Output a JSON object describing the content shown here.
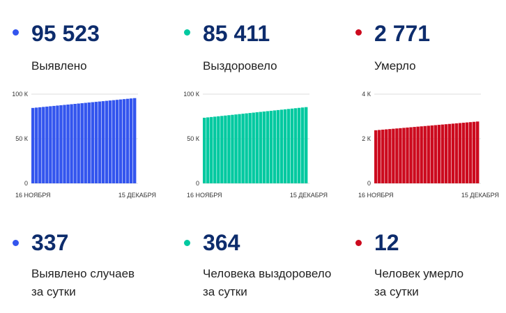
{
  "colors": {
    "confirmed": "#3355ee",
    "recovered": "#00c9a0",
    "deaths": "#cc0a1e",
    "number": "#0d2c6c",
    "grid": "#dddddd"
  },
  "totals": [
    {
      "value": "95 523",
      "label": "Выявлено"
    },
    {
      "value": "85 411",
      "label": "Выздоровело"
    },
    {
      "value": "2 771",
      "label": "Умерло"
    }
  ],
  "daily": [
    {
      "value": "337",
      "line1": "Выявлено случаев",
      "line2": "за сутки"
    },
    {
      "value": "364",
      "line1": "Человека выздоровело",
      "line2": "за сутки"
    },
    {
      "value": "12",
      "line1": "Человек умерло",
      "line2": "за сутки"
    }
  ],
  "chart_data": [
    {
      "type": "bar",
      "series_color": "confirmed",
      "x_start": "16 НОЯБРЯ",
      "x_end": "15 ДЕКАБРЯ",
      "bar_count": 30,
      "start_value": 84500,
      "end_value": 95523,
      "ylim": [
        0,
        100000
      ],
      "yticks": [
        0,
        50000,
        100000
      ],
      "ytick_labels": [
        "0",
        "50 К",
        "100 К"
      ],
      "grid": true
    },
    {
      "type": "bar",
      "series_color": "recovered",
      "x_start": "16 НОЯБРЯ",
      "x_end": "15 ДЕКАБРЯ",
      "bar_count": 30,
      "start_value": 73500,
      "end_value": 85411,
      "ylim": [
        0,
        100000
      ],
      "yticks": [
        0,
        50000,
        100000
      ],
      "ytick_labels": [
        "0",
        "50 К",
        "100 К"
      ],
      "grid": true
    },
    {
      "type": "bar",
      "series_color": "deaths",
      "x_start": "16 НОЯБРЯ",
      "x_end": "15 ДЕКАБРЯ",
      "bar_count": 30,
      "start_value": 2380,
      "end_value": 2771,
      "ylim": [
        0,
        4000
      ],
      "yticks": [
        0,
        2000,
        4000
      ],
      "ytick_labels": [
        "0",
        "2 К",
        "4 К"
      ],
      "grid": true
    }
  ]
}
